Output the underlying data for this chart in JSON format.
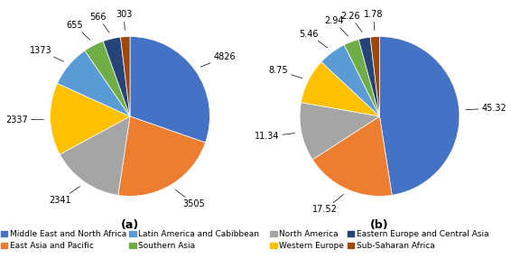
{
  "chart_a": {
    "labels": [
      "Middle East and North Africa",
      "East Asia and Pacific",
      "North America",
      "Western Europe",
      "Latin America and Cabibbean",
      "Southern Asia",
      "Eastern Europe and Central Asia",
      "Sub-Saharan Africa"
    ],
    "values": [
      4826,
      3505,
      2341,
      2337,
      1373,
      655,
      566,
      303
    ],
    "colors": [
      "#4472C4",
      "#ED7D31",
      "#A5A5A5",
      "#FFC000",
      "#5B9BD5",
      "#70AD47",
      "#264478",
      "#9E480E"
    ],
    "labels_display": [
      "4826",
      "3505",
      "2341",
      "2337",
      "1373",
      "655",
      "566",
      "303"
    ],
    "title": "(a)"
  },
  "chart_b": {
    "labels": [
      "Middle East and North Africa",
      "East Asia and Pacific",
      "North America",
      "Western Europe",
      "Latin America and Cabibbean",
      "Southern Asia",
      "Eastern Europe and Central Asia",
      "Sub-Saharan Africa"
    ],
    "values": [
      45.32,
      17.52,
      11.34,
      8.75,
      5.46,
      2.94,
      2.26,
      1.78
    ],
    "colors": [
      "#4472C4",
      "#ED7D31",
      "#A5A5A5",
      "#FFC000",
      "#5B9BD5",
      "#70AD47",
      "#264478",
      "#9E480E"
    ],
    "labels_display": [
      "45.32",
      "17.52",
      "11.34",
      "8.75",
      "5.46",
      "2.94",
      "2.26",
      "1.78"
    ],
    "title": "(b)"
  },
  "legend_a": {
    "entries": [
      "Middle East and North Africa",
      "East Asia and Pacific",
      "Latin America and Cabibbean",
      "Southern Asia"
    ],
    "colors": [
      "#4472C4",
      "#ED7D31",
      "#5B9BD5",
      "#70AD47"
    ]
  },
  "legend_b": {
    "entries": [
      "North America",
      "Western Europe",
      "Eastern Europe and Central Asia",
      "Sub-Saharan Africa"
    ],
    "colors": [
      "#A5A5A5",
      "#FFC000",
      "#264478",
      "#9E480E"
    ]
  },
  "legend_fontsize": 6.5,
  "label_fontsize": 7.0,
  "title_fontsize": 9
}
